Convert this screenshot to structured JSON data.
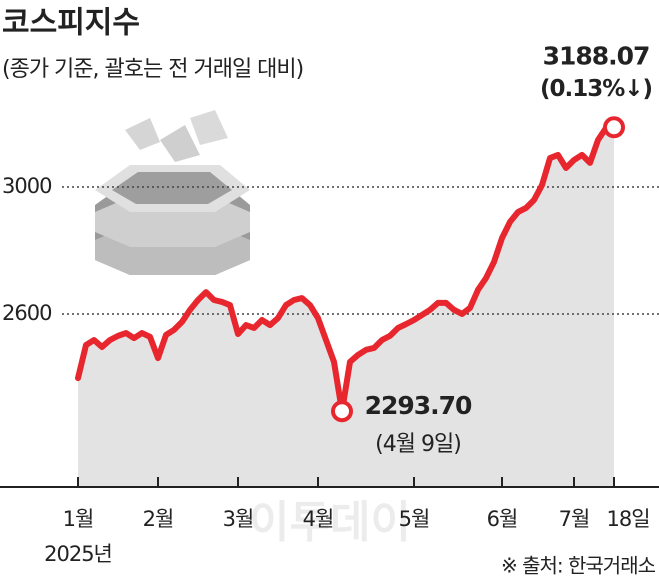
{
  "chart_data": {
    "type": "line",
    "title": "코스피지수",
    "subtitle": "(종가 기준, 괄호는 전 거래일 대비)",
    "categories": [
      "1월",
      null,
      null,
      null,
      null,
      null,
      null,
      null,
      null,
      null,
      "2월",
      null,
      null,
      null,
      null,
      null,
      null,
      null,
      null,
      null,
      "3월",
      null,
      null,
      null,
      null,
      null,
      null,
      null,
      null,
      null,
      "4월",
      null,
      null,
      null,
      null,
      null,
      null,
      null,
      null,
      null,
      null,
      null,
      "5월",
      null,
      null,
      null,
      null,
      null,
      null,
      null,
      null,
      null,
      null,
      "6월",
      null,
      null,
      null,
      null,
      null,
      null,
      null,
      null,
      "7월",
      null,
      null,
      null,
      null,
      "18일"
    ],
    "x_year_label": "2025년",
    "series": [
      {
        "name": "코스피지수",
        "color": "#e8262e",
        "values": [
          2398,
          2502,
          2518,
          2496,
          2518,
          2531,
          2540,
          2524,
          2540,
          2528,
          2461,
          2534,
          2550,
          2575,
          2613,
          2644,
          2669,
          2644,
          2638,
          2628,
          2537,
          2565,
          2556,
          2581,
          2565,
          2587,
          2628,
          2644,
          2650,
          2628,
          2587,
          2518,
          2449,
          2293.7,
          2449,
          2471,
          2487,
          2493,
          2518,
          2531,
          2556,
          2568,
          2581,
          2597,
          2613,
          2635,
          2635,
          2613,
          2600,
          2619,
          2676,
          2713,
          2764,
          2839,
          2890,
          2921,
          2934,
          2959,
          3006,
          3091,
          3101,
          3060,
          3085,
          3101,
          3076,
          3148,
          3186,
          3188.07
        ],
        "value_labels": [
          null,
          null,
          null,
          null,
          null,
          null,
          null,
          null,
          null,
          null,
          null,
          null,
          null,
          null,
          null,
          null,
          null,
          null,
          null,
          null,
          null,
          null,
          null,
          null,
          null,
          null,
          null,
          null,
          null,
          null,
          null,
          null,
          null,
          "2293.70",
          null,
          null,
          null,
          null,
          null,
          null,
          null,
          null,
          null,
          null,
          null,
          null,
          null,
          null,
          null,
          null,
          null,
          null,
          null,
          null,
          null,
          null,
          null,
          null,
          null,
          null,
          null,
          null,
          null,
          null,
          null,
          null,
          null,
          "3188.07"
        ]
      }
    ],
    "annotations": [
      "(4월 9일)",
      "(0.13%↓)"
    ],
    "ylim": [
      2055,
      3589
    ],
    "yticks": [
      2600,
      3000
    ],
    "grid": true,
    "area_color": "#e3e3e3",
    "source": "※ 출처: 한국거래소",
    "watermark": "이투데이"
  }
}
